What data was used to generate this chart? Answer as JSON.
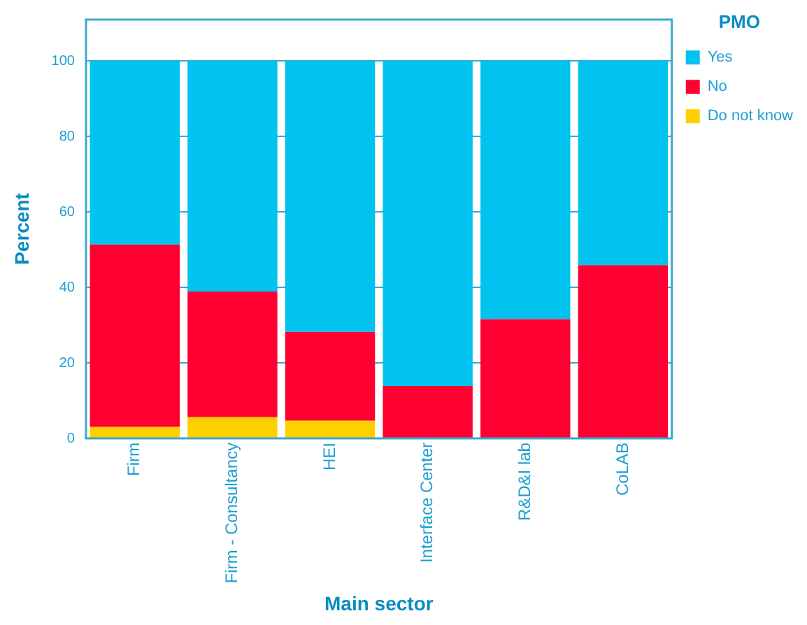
{
  "chart_data": {
    "type": "bar",
    "stacked": true,
    "xlabel": "Main sector",
    "ylabel": "Percent",
    "legend_title": "PMO",
    "legend": "top right",
    "grid": "y",
    "categories": [
      "Firm",
      "Firm - Consultancy",
      "HEI",
      "Interface Center",
      "R&D&I lab",
      "CoLAB"
    ],
    "ylim": [
      0,
      111
    ],
    "yticks": [
      0,
      20,
      40,
      60,
      80,
      100
    ],
    "series": [
      {
        "name": "Do not know",
        "color": "#ffd000",
        "values": [
          3,
          5.6,
          4.7,
          0,
          0,
          0
        ]
      },
      {
        "name": "No",
        "color": "#ff0030",
        "values": [
          48.4,
          33.3,
          23.5,
          13.9,
          31.6,
          45.9
        ]
      },
      {
        "name": "Yes",
        "color": "#00c3f0",
        "values": [
          48.6,
          61.1,
          71.8,
          86.1,
          68.4,
          54.1
        ]
      }
    ]
  }
}
